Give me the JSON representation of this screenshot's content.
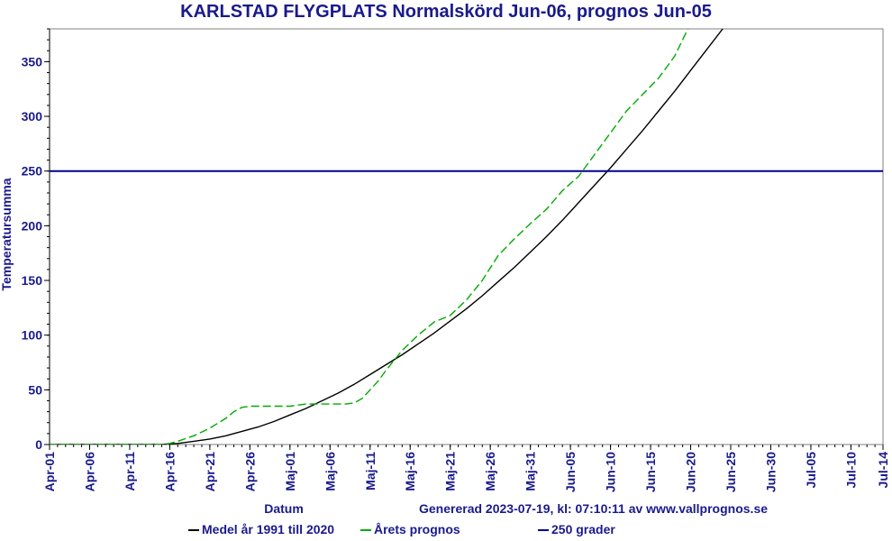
{
  "chart_data": {
    "type": "line",
    "title": "KARLSTAD FLYGPLATS Normalskörd Jun-06, prognos Jun-05",
    "xlabel": "Datum",
    "ylabel": "Temperatursumma",
    "ylim": [
      0,
      380
    ],
    "y_ticks": [
      0,
      50,
      100,
      150,
      200,
      250,
      300,
      350
    ],
    "x_tick_labels": [
      "Apr-01",
      "Apr-06",
      "Apr-11",
      "Apr-16",
      "Apr-21",
      "Apr-26",
      "Maj-01",
      "Maj-06",
      "Maj-11",
      "Maj-16",
      "Maj-21",
      "Maj-26",
      "Maj-31",
      "Jun-05",
      "Jun-10",
      "Jun-15",
      "Jun-20",
      "Jun-25",
      "Jun-30",
      "Jul-05",
      "Jul-10",
      "Jul-14"
    ],
    "x_unit": "days since Apr-01",
    "xlim": [
      0,
      104
    ],
    "grid": false,
    "legend_position": "bottom",
    "annotation": "Genererad 2023-07-19, kl: 07:10:11 av www.vallprognos.se",
    "series": [
      {
        "name": "Medel år 1991 till 2020",
        "color": "#000000",
        "style": "solid",
        "x": [
          0,
          14,
          16,
          18,
          20,
          22,
          24,
          26,
          28,
          30,
          32,
          34,
          36,
          38,
          40,
          42,
          44,
          46,
          48,
          50,
          52,
          54,
          56,
          58,
          60,
          62,
          64,
          66,
          68,
          70,
          72,
          74,
          76,
          78,
          80,
          82,
          84,
          86
        ],
        "y": [
          0,
          0,
          1,
          3,
          5,
          8,
          12,
          16,
          21,
          27,
          33,
          40,
          47,
          55,
          64,
          73,
          82,
          92,
          102,
          113,
          124,
          136,
          149,
          162,
          176,
          190,
          205,
          221,
          237,
          253,
          270,
          287,
          305,
          323,
          342,
          361,
          380,
          395
        ]
      },
      {
        "name": "Årets prognos",
        "color": "#00aa00",
        "style": "dashed",
        "x": [
          0,
          14,
          15,
          16,
          18,
          20,
          22,
          23,
          24,
          25,
          26,
          28,
          30,
          32,
          34,
          36,
          37,
          38,
          39,
          40,
          41,
          42,
          44,
          46,
          48,
          50,
          52,
          54,
          56,
          58,
          60,
          62,
          64,
          66,
          68,
          70,
          72,
          74,
          76,
          78,
          79,
          80,
          81
        ],
        "y": [
          0,
          0,
          1,
          3,
          8,
          15,
          24,
          30,
          34,
          35,
          35,
          35,
          35,
          37,
          37,
          37,
          37,
          38,
          42,
          50,
          58,
          68,
          86,
          100,
          112,
          118,
          132,
          150,
          173,
          188,
          202,
          215,
          232,
          245,
          265,
          285,
          305,
          320,
          335,
          355,
          370,
          385,
          400
        ]
      },
      {
        "name": "250 grader",
        "color": "#00008b",
        "style": "solid",
        "x": [
          0,
          104
        ],
        "y": [
          250,
          250
        ]
      }
    ]
  },
  "legend": {
    "items": [
      "Medel år 1991 till 2020",
      "Årets prognos",
      "250 grader"
    ]
  }
}
